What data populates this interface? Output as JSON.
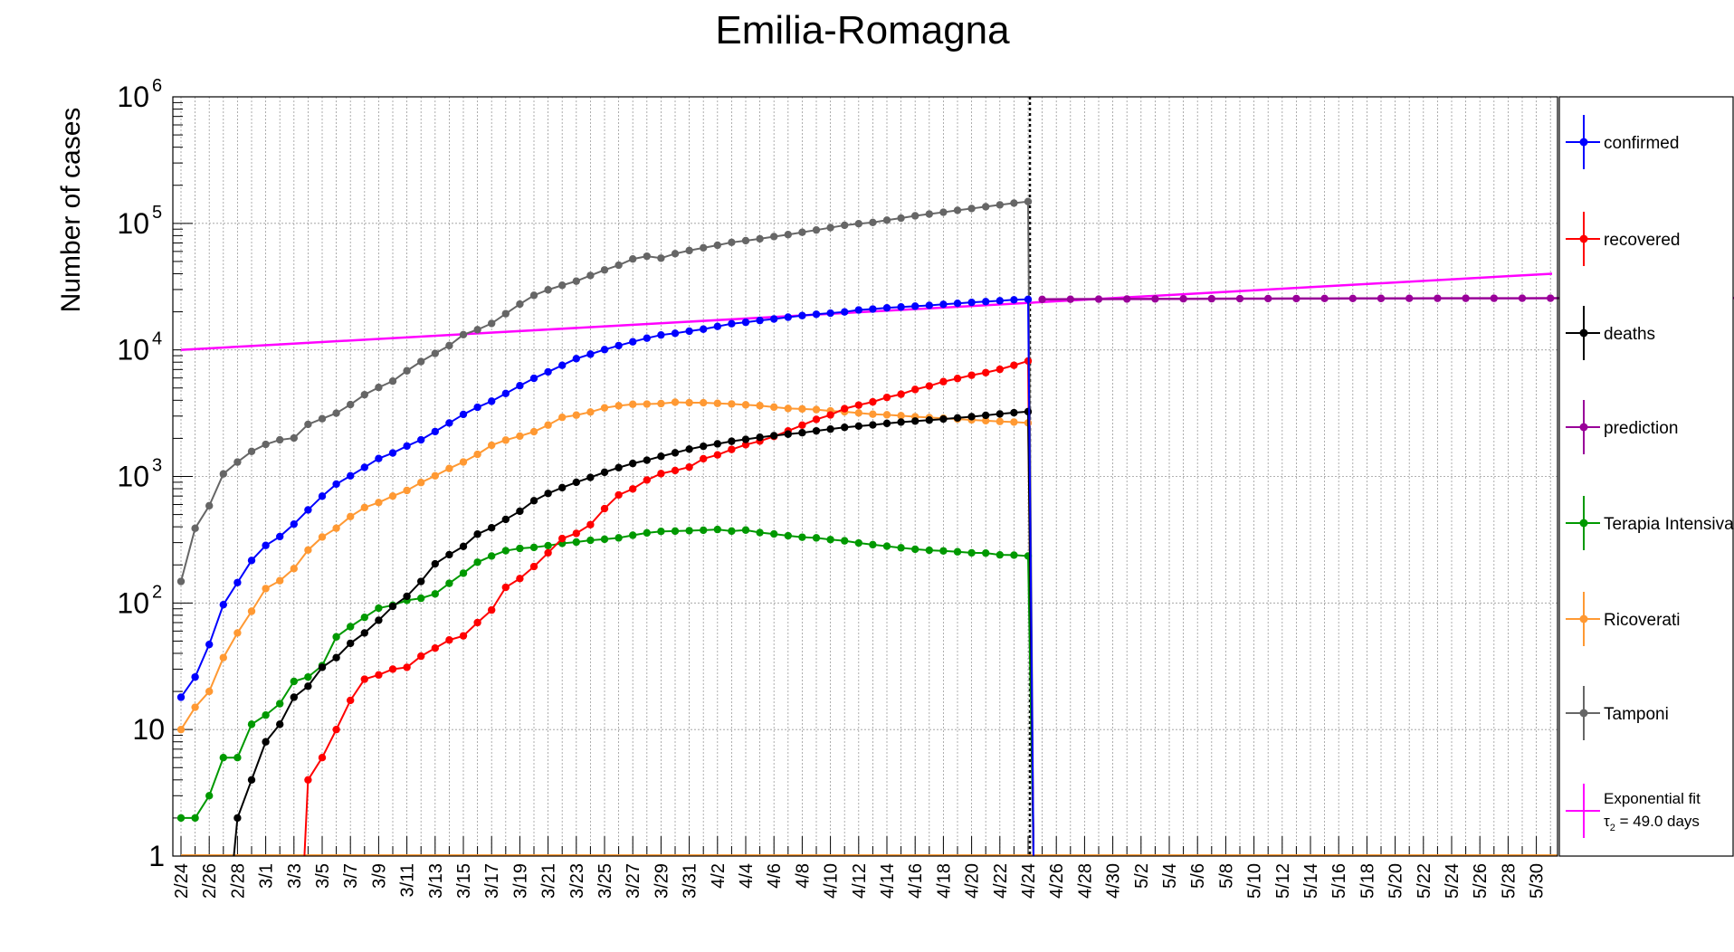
{
  "chart_data": {
    "type": "line",
    "title": "Emilia-Romagna",
    "ylabel": "Number of cases",
    "xlabel": "",
    "yscale": "log",
    "ylim": [
      1,
      1000000
    ],
    "y_ticks": [
      {
        "value": 1,
        "label": "1"
      },
      {
        "value": 10,
        "label": "10"
      },
      {
        "value": 100,
        "label": "10",
        "exp": "2"
      },
      {
        "value": 1000,
        "label": "10",
        "exp": "3"
      },
      {
        "value": 10000,
        "label": "10",
        "exp": "4"
      },
      {
        "value": 100000,
        "label": "10",
        "exp": "5"
      },
      {
        "value": 1000000,
        "label": "10",
        "exp": "6"
      }
    ],
    "x_start": "2/24",
    "x_end": "5/31",
    "x_tick_labels": [
      "2/24",
      "2/26",
      "2/28",
      "3/1",
      "3/3",
      "3/5",
      "3/7",
      "3/9",
      "3/11",
      "3/13",
      "3/15",
      "3/17",
      "3/19",
      "3/21",
      "3/23",
      "3/25",
      "3/27",
      "3/29",
      "3/31",
      "4/2",
      "4/4",
      "4/6",
      "4/8",
      "4/10",
      "4/12",
      "4/14",
      "4/16",
      "4/18",
      "4/20",
      "4/22",
      "4/24",
      "4/26",
      "4/28",
      "4/30",
      "5/2",
      "5/4",
      "5/6",
      "5/8",
      "5/10",
      "5/12",
      "5/14",
      "5/16",
      "5/18",
      "5/20",
      "5/22",
      "5/24",
      "5/26",
      "5/28",
      "5/30"
    ],
    "grid": true,
    "legend_position": "right",
    "reference_line_date": "4/24",
    "series": [
      {
        "name": "confirmed",
        "color": "#0000ff",
        "values": [
          18,
          26,
          47,
          97,
          145,
          217,
          285,
          335,
          420,
          544,
          698,
          870,
          1011,
          1180,
          1386,
          1533,
          1739,
          1947,
          2263,
          2644,
          3093,
          3522,
          3931,
          4525,
          5214,
          5968,
          6705,
          7555,
          8535,
          9254,
          10054,
          10816,
          11588,
          12383,
          13119,
          13531,
          14074,
          14586,
          15333,
          16113,
          16540,
          17089,
          17556,
          18137,
          18677,
          19128,
          19519,
          19961,
          20686,
          21029,
          21506,
          21834,
          22160,
          22490,
          22921,
          23338,
          23732,
          24082,
          24454,
          24884,
          25095
        ]
      },
      {
        "name": "recovered",
        "color": "#ff0000",
        "values": [
          0,
          0,
          0,
          0,
          0,
          0,
          0,
          0,
          0,
          4,
          6,
          10,
          17,
          25,
          27,
          30,
          31,
          38,
          44,
          51,
          55,
          70,
          88,
          133,
          156,
          194,
          249,
          323,
          355,
          416,
          557,
          714,
          797,
          937,
          1053,
          1114,
          1186,
          1380,
          1480,
          1635,
          1781,
          1902,
          2072,
          2290,
          2543,
          2826,
          3061,
          3433,
          3664,
          3882,
          4214,
          4467,
          4869,
          5186,
          5614,
          5946,
          6308,
          6615,
          7022,
          7561,
          8170
        ]
      },
      {
        "name": "deaths",
        "color": "#000000",
        "values": [
          0,
          0,
          0,
          0,
          2,
          4,
          8,
          11,
          18,
          22,
          31,
          37,
          48,
          58,
          73,
          94,
          113,
          148,
          204,
          241,
          280,
          350,
          393,
          458,
          531,
          643,
          734,
          816,
          899,
          983,
          1079,
          1174,
          1267,
          1344,
          1443,
          1538,
          1644,
          1732,
          1810,
          1897,
          1963,
          2039,
          2101,
          2159,
          2215,
          2291,
          2367,
          2443,
          2501,
          2553,
          2627,
          2688,
          2738,
          2788,
          2841,
          2902,
          2967,
          3042,
          3119,
          3190,
          3253
        ]
      },
      {
        "name": "Terapia Intensiva",
        "color": "#009900",
        "values": [
          2,
          2,
          3,
          6,
          6,
          11,
          13,
          16,
          24,
          26,
          32,
          54,
          65,
          77,
          91,
          96,
          105,
          109,
          118,
          143,
          172,
          210,
          235,
          259,
          270,
          275,
          284,
          296,
          303,
          313,
          319,
          327,
          343,
          358,
          368,
          370,
          373,
          376,
          381,
          370,
          377,
          360,
          351,
          340,
          331,
          327,
          317,
          310,
          298,
          289,
          281,
          273,
          266,
          261,
          258,
          254,
          249,
          248,
          240,
          239,
          235
        ]
      },
      {
        "name": "Ricoverati",
        "color": "#ff9933",
        "values": [
          10,
          15,
          20,
          37,
          58,
          86,
          130,
          150,
          187,
          262,
          332,
          390,
          482,
          568,
          622,
          700,
          775,
          895,
          1012,
          1156,
          1301,
          1495,
          1764,
          1937,
          2084,
          2258,
          2547,
          2932,
          3053,
          3228,
          3485,
          3620,
          3719,
          3732,
          3766,
          3862,
          3827,
          3823,
          3781,
          3740,
          3681,
          3629,
          3533,
          3446,
          3417,
          3377,
          3296,
          3243,
          3175,
          3105,
          3071,
          3021,
          2963,
          2920,
          2880,
          2842,
          2800,
          2758,
          2720,
          2690,
          2650
        ]
      },
      {
        "name": "Tamponi",
        "color": "#666666",
        "values": [
          148,
          389,
          587,
          1047,
          1299,
          1578,
          1792,
          1946,
          2011,
          2580,
          2859,
          3164,
          3698,
          4427,
          5055,
          5664,
          6839,
          8090,
          9380,
          10820,
          13205,
          14437,
          16185,
          19330,
          23002,
          26987,
          29855,
          32419,
          34955,
          38762,
          42867,
          46702,
          52286,
          55000,
          53100,
          57600,
          61000,
          64100,
          67200,
          70800,
          73000,
          75500,
          78600,
          81500,
          85000,
          88600,
          92500,
          96600,
          99400,
          101700,
          106000,
          110000,
          114700,
          118500,
          122400,
          126800,
          131000,
          135400,
          140000,
          144600,
          148700
        ]
      },
      {
        "name": "prediction",
        "color": "#990099",
        "x_start_index": 61,
        "values": [
          25095,
          25150,
          25200,
          25250,
          25300,
          25340,
          25380,
          25410,
          25440,
          25470,
          25490,
          25510,
          25530,
          25550,
          25570,
          25580,
          25590,
          25600,
          25610,
          25620,
          25630,
          25640,
          25650,
          25660,
          25665,
          25670,
          25675,
          25680,
          25685,
          25690,
          25695,
          25700,
          25705,
          25710,
          25715,
          25720,
          25725
        ]
      },
      {
        "name": "Exponential fit",
        "name2": "τ₂ = 49.0 days",
        "legend_line1": "Exponential fit",
        "legend_line2_prefix": "τ",
        "legend_line2_sub": "2",
        "legend_line2_suffix": " = 49.0 days",
        "color": "#ff00ff",
        "tau_days": 49.0,
        "start_value": 10000,
        "end_value": 40000
      }
    ]
  }
}
